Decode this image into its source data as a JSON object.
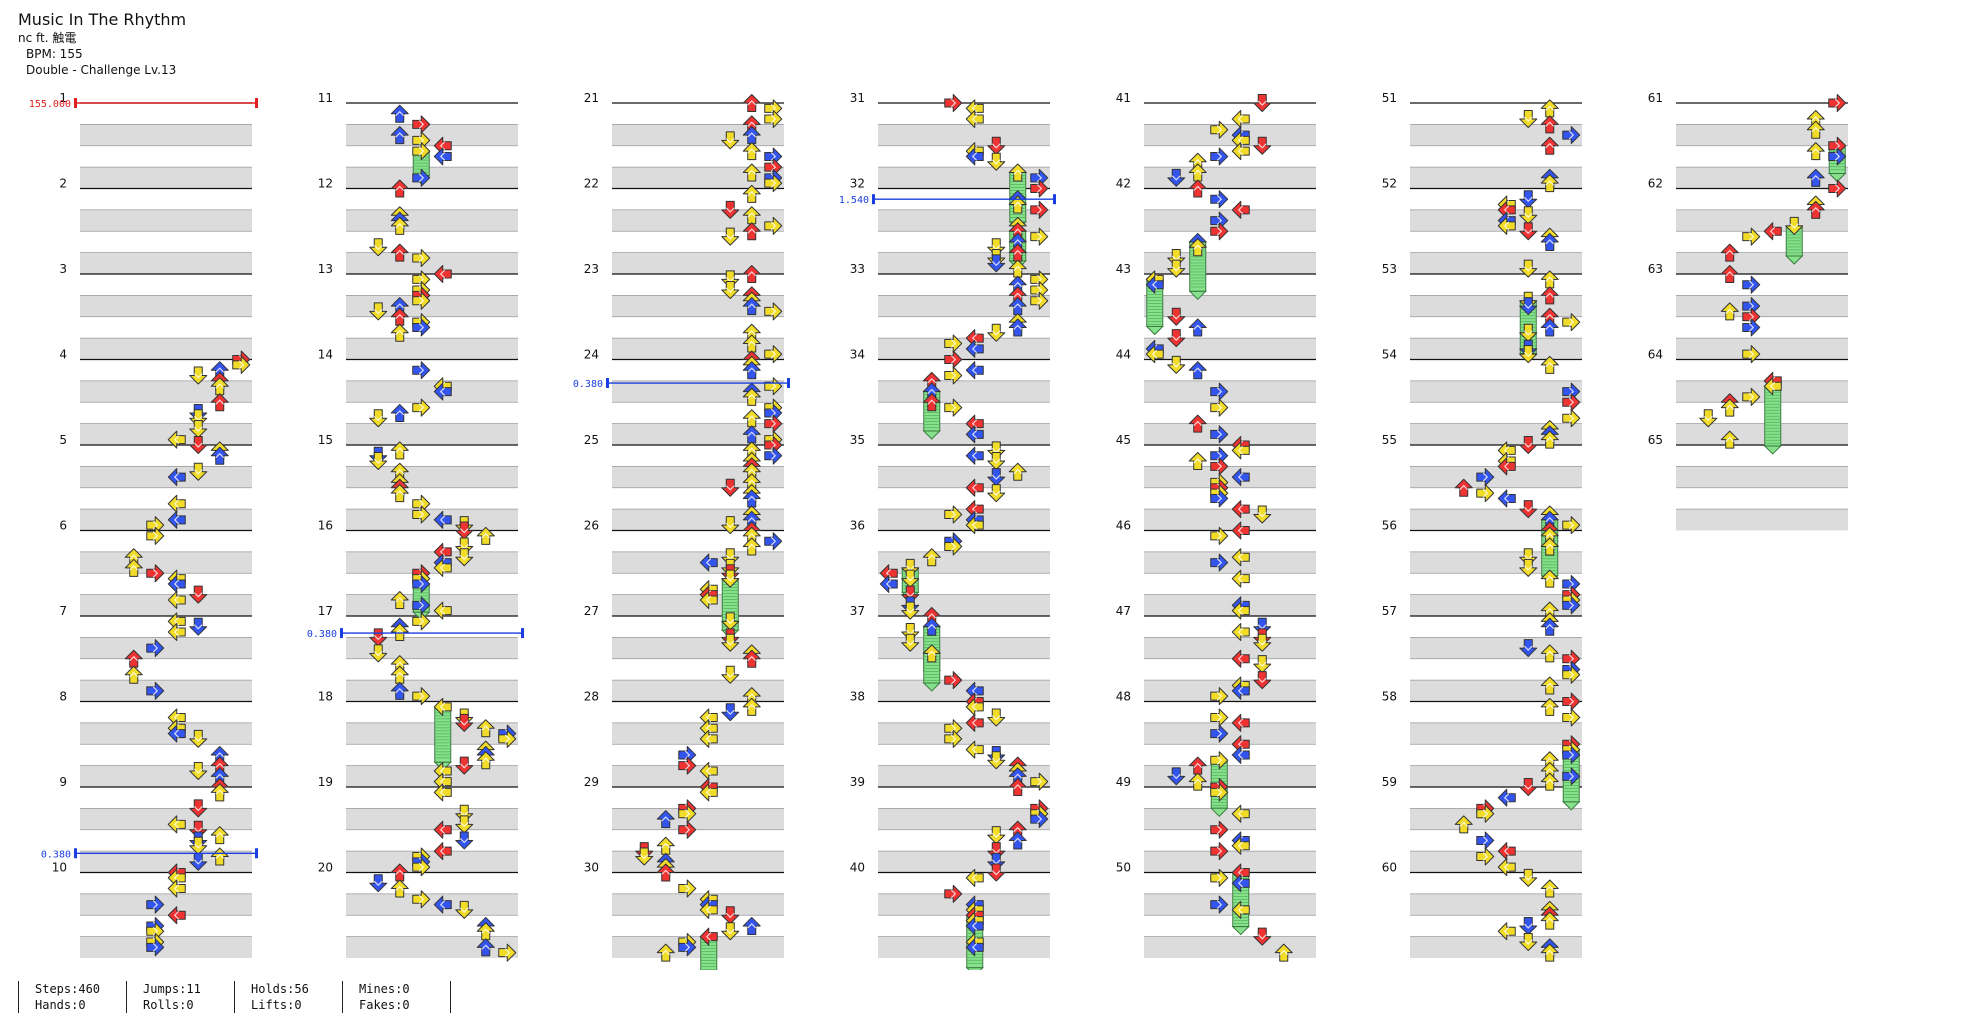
{
  "song": {
    "title": "Music In The Rhythm",
    "artist": "nc ft. 触電",
    "bpm_line": "BPM: 155",
    "difficulty_line": "Double - Challenge Lv.13"
  },
  "columns": [
    {
      "first_measure": 1,
      "measures": [
        1,
        2,
        3,
        4,
        5,
        6,
        7,
        8,
        9,
        10
      ]
    },
    {
      "first_measure": 11,
      "measures": [
        11,
        12,
        13,
        14,
        15,
        16,
        17,
        18,
        19,
        20
      ]
    },
    {
      "first_measure": 21,
      "measures": [
        21,
        22,
        23,
        24,
        25,
        26,
        27,
        28,
        29,
        30
      ]
    },
    {
      "first_measure": 31,
      "measures": [
        31,
        32,
        33,
        34,
        35,
        36,
        37,
        38,
        39,
        40
      ]
    },
    {
      "first_measure": 41,
      "measures": [
        41,
        42,
        43,
        44,
        45,
        46,
        47,
        48,
        49,
        50
      ]
    },
    {
      "first_measure": 51,
      "measures": [
        51,
        52,
        53,
        54,
        55,
        56,
        57,
        58,
        59,
        60
      ]
    },
    {
      "first_measure": 61,
      "measures": [
        61,
        62,
        63,
        64,
        65
      ]
    }
  ],
  "bpm_markers": [
    {
      "label": "155.000",
      "measure": 1,
      "beat": 0,
      "color": "#e02020"
    },
    {
      "label": "0.380",
      "measure": 9,
      "beat": 3.1,
      "color": "#1a3fe0"
    },
    {
      "label": "0.380",
      "measure": 17,
      "beat": 0.8,
      "color": "#1a3fe0"
    },
    {
      "label": "0.380",
      "measure": 24,
      "beat": 1.1,
      "color": "#1a3fe0"
    },
    {
      "label": "1.540",
      "measure": 32,
      "beat": 0.5,
      "color": "#1a3fe0"
    }
  ],
  "arrow_colors": {
    "quarter": "#ee3333",
    "eighth": "#3355ee",
    "sixteenth": "#f2dc2a",
    "hold": "#86e08c"
  },
  "icons": {
    "left": "left-arrow-icon",
    "down": "down-arrow-icon",
    "up": "up-arrow-icon",
    "right": "right-arrow-icon"
  },
  "stats": {
    "steps": "Steps:460",
    "hands": "Hands:0",
    "jumps": "Jumps:11",
    "rolls": "Rolls:0",
    "holds": "Holds:56",
    "lifts": "Lifts:0",
    "mines": "Mines:0",
    "fakes": "Fakes:0"
  }
}
